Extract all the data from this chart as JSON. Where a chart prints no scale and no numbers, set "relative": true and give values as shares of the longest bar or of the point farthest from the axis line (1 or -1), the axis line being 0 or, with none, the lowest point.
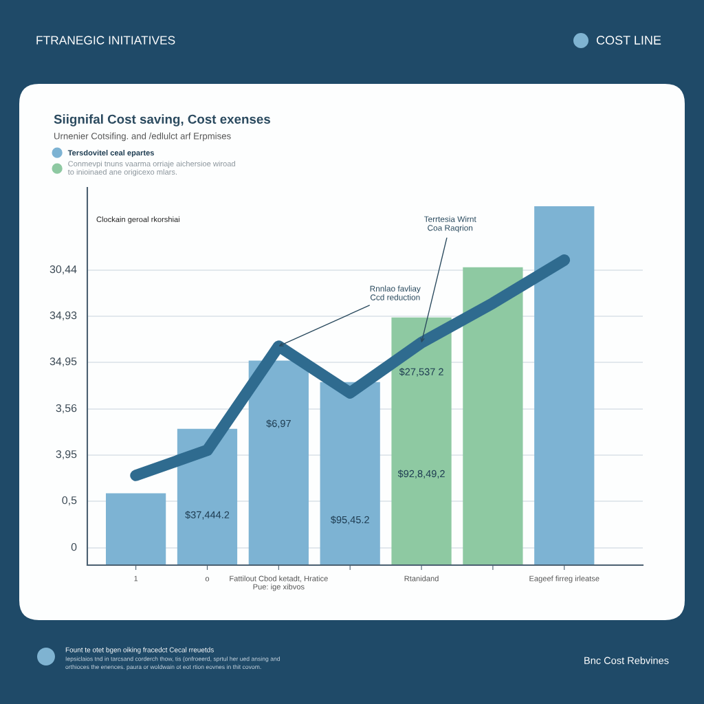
{
  "chart_data": {
    "type": "bar",
    "relative": true,
    "title": "Siignifal Cost saving, Cost exenses",
    "subtitle": "Urnenier Cotsifing. and /edlulct arf Erpmises",
    "ylabel": "Clockain geroal rkorshiai",
    "categories": [
      "1",
      "o",
      "Fattilout Cbod ketadt, Hratice\nPue: ige xibvos",
      null,
      "Rtanidand",
      null,
      "Eageef firreg irleatse"
    ],
    "series": [
      {
        "name": "Tersdovitel ceal epartes",
        "color": "#7db3d3",
        "values": [
          0.2,
          0.38,
          0.57,
          0.51,
          null,
          null,
          1
        ]
      },
      {
        "name": "Conmevpi tnuns vaarma orriaje aichersioe wiroad\nto inioinaed ane origicexo mlars.",
        "color": "#8ec9a2",
        "values": [
          null,
          null,
          null,
          null,
          0.69,
          0.83,
          null
        ]
      },
      {
        "type": "line",
        "color": "#2f6b8f",
        "values": [
          0.25,
          0.32,
          0.61,
          0.48,
          0.62,
          0.73,
          0.85
        ]
      }
    ],
    "grid": "y",
    "legend": "top left",
    "annotations": [
      "FTRANEGIC INITIATIVES",
      "COST LINE",
      "30,44",
      "34,93",
      "34,95",
      "3,56",
      "3,95",
      "0,5",
      "0",
      "$37,444.2",
      "$6,97",
      "$95,45.2",
      "$27,537 2",
      "$92,8,49,2",
      "Fount te otet bgen oiking fracedct Cecal rreuetds",
      "Iepsiclaios tnd in tarcsand corderch thow, tis (onfroeerd, sprtul her ued ansing and\northioces the enences. paura or woldwain ot eot rtion eovnes in thit covom.",
      "Bnc Cost Rebvines",
      {
        "text": "Rnnlao favliay\nCcd reduction",
        "x": "Fattilout Cbod ketadt, Hratice\nPue: ige xibvos",
        "y": 0.61
      },
      {
        "text": "Terrtesia Wirnt\nCoa Raqrion",
        "x": "Rtanidand",
        "y": 0.62
      }
    ]
  }
}
